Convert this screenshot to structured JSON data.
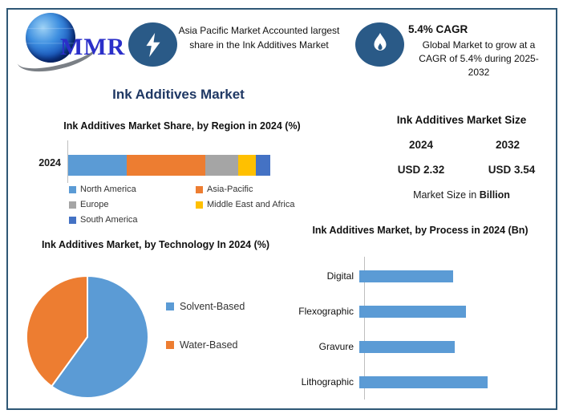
{
  "page": {
    "border_color": "#2F5876",
    "background": "#ffffff"
  },
  "header": {
    "logo": {
      "text": "MMR",
      "icon": "globe-swoosh-logo",
      "text_color": "#2B2FC9"
    },
    "highlight_share": {
      "icon": "lightning-bolt",
      "icon_bg": "#2A5A87",
      "text": "Asia Pacific Market Accounted largest share in the Ink Additives Market"
    },
    "highlight_cagr": {
      "icon": "flame",
      "icon_bg": "#2A5A87",
      "title": "5.4% CAGR",
      "text": "Global Market to grow at a CAGR of 5.4% during 2025-2032"
    }
  },
  "main_title": "Ink Additives Market",
  "market_size": {
    "title": "Ink Additives Market Size",
    "year_left": "2024",
    "year_right": "2032",
    "value_left": "USD 2.32",
    "value_right": "USD 3.54",
    "value_color": "#2196D5",
    "footnote_prefix": "Market Size in ",
    "footnote_bold": "Billion"
  },
  "chart_data": [
    {
      "type": "bar",
      "subtype": "stacked-horizontal",
      "title": "Ink Additives Market Share, by Region in 2024 (%)",
      "categories": [
        "2024"
      ],
      "series": [
        {
          "name": "North America",
          "color": "#5B9BD5",
          "values": [
            29
          ]
        },
        {
          "name": "Asia-Pacific",
          "color": "#ED7D31",
          "values": [
            39
          ]
        },
        {
          "name": "Europe",
          "color": "#A5A5A5",
          "values": [
            16
          ]
        },
        {
          "name": "Middle East and Africa",
          "color": "#FFC000",
          "values": [
            9
          ]
        },
        {
          "name": "South America",
          "color": "#4472C4",
          "values": [
            7
          ]
        }
      ],
      "xlim": [
        0,
        100
      ],
      "legend_position": "bottom",
      "grid": false
    },
    {
      "type": "pie",
      "title": "Ink Additives Market, by Technology In 2024 (%)",
      "labels": [
        "Solvent-Based",
        "Water-Based"
      ],
      "values": [
        60,
        40
      ],
      "colors": [
        "#5B9BD5",
        "#ED7D31"
      ],
      "legend_position": "right"
    },
    {
      "type": "bar",
      "subtype": "horizontal",
      "title": "Ink Additives Market, by Process in 2024 (Bn)",
      "categories": [
        "Digital",
        "Flexographic",
        "Gravure",
        "Lithographic"
      ],
      "values": [
        0.51,
        0.58,
        0.52,
        0.7
      ],
      "color": "#5B9BD5",
      "xlim": [
        0,
        0.8
      ],
      "grid": false
    }
  ]
}
